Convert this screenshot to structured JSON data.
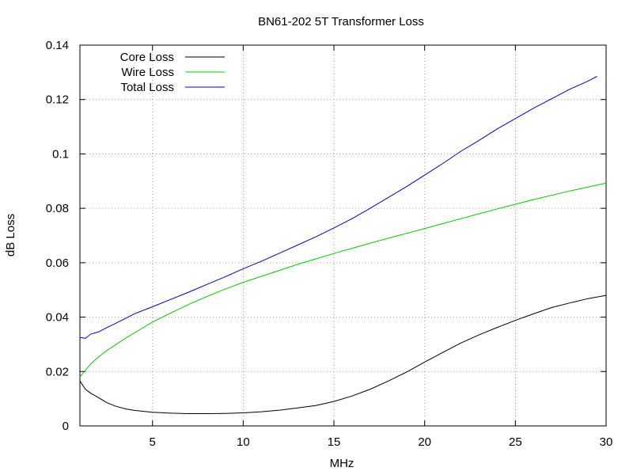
{
  "chart_data": {
    "type": "line",
    "title": "BN61-202 5T Transformer Loss",
    "xlabel": "MHz",
    "ylabel": "dB Loss",
    "xlim": [
      1,
      30
    ],
    "ylim": [
      0,
      0.14
    ],
    "xticks": [
      5,
      10,
      15,
      20,
      25,
      30
    ],
    "xtick_labels": [
      "5",
      "10",
      "15",
      "20",
      "25",
      "30"
    ],
    "yticks": [
      0,
      0.02,
      0.04,
      0.06,
      0.08,
      0.1,
      0.12,
      0.14
    ],
    "ytick_labels": [
      "0",
      "0.02",
      "0.04",
      "0.06",
      "0.08",
      "0.1",
      "0.12",
      "0.14"
    ],
    "grid": true,
    "legend_position": "top-left",
    "series": [
      {
        "name": "Core Loss",
        "color": "#000000",
        "x": [
          1,
          1.3,
          1.6,
          2,
          2.5,
          3,
          3.5,
          4,
          5,
          6,
          7,
          8,
          9,
          10,
          11,
          12,
          13,
          14,
          15,
          16,
          17,
          18,
          19,
          20,
          21,
          22,
          23,
          24,
          25,
          26,
          27,
          28,
          29,
          30
        ],
        "y": [
          0.0165,
          0.0135,
          0.012,
          0.0105,
          0.0085,
          0.0072,
          0.0063,
          0.0057,
          0.005,
          0.0047,
          0.0045,
          0.0045,
          0.0046,
          0.0048,
          0.0052,
          0.0058,
          0.0066,
          0.0075,
          0.009,
          0.011,
          0.0135,
          0.0165,
          0.0198,
          0.0235,
          0.027,
          0.0305,
          0.0335,
          0.0362,
          0.0388,
          0.0412,
          0.0435,
          0.0452,
          0.0468,
          0.048
        ]
      },
      {
        "name": "Wire Loss",
        "color": "#00cc00",
        "x": [
          1,
          1.3,
          1.6,
          2,
          2.5,
          3,
          3.5,
          4,
          5,
          6,
          7,
          8,
          9,
          10,
          11,
          12,
          13,
          14,
          15,
          16,
          17,
          18,
          19,
          20,
          21,
          22,
          23,
          24,
          25,
          26,
          27,
          28,
          29,
          30
        ],
        "y": [
          0.018,
          0.0205,
          0.0228,
          0.0252,
          0.0278,
          0.03,
          0.0322,
          0.0342,
          0.0382,
          0.0415,
          0.0447,
          0.0476,
          0.0503,
          0.0528,
          0.055,
          0.0572,
          0.0594,
          0.0614,
          0.0634,
          0.0653,
          0.0672,
          0.069,
          0.0708,
          0.0726,
          0.0744,
          0.0762,
          0.078,
          0.0798,
          0.0815,
          0.0832,
          0.0848,
          0.0864,
          0.0878,
          0.0893
        ]
      },
      {
        "name": "Total Loss",
        "color": "#0000cc",
        "x": [
          1,
          1.3,
          1.6,
          2,
          2.5,
          3,
          3.5,
          4,
          5,
          6,
          7,
          8,
          9,
          10,
          11,
          12,
          13,
          14,
          15,
          16,
          17,
          18,
          19,
          20,
          21,
          22,
          23,
          24,
          25,
          26,
          27,
          28,
          29,
          29.5
        ],
        "y": [
          0.0325,
          0.0322,
          0.0338,
          0.0345,
          0.0362,
          0.0378,
          0.0395,
          0.0412,
          0.0438,
          0.0465,
          0.0492,
          0.052,
          0.0548,
          0.0578,
          0.0605,
          0.0635,
          0.0665,
          0.0695,
          0.0728,
          0.0762,
          0.08,
          0.084,
          0.088,
          0.0922,
          0.0965,
          0.101,
          0.105,
          0.1092,
          0.113,
          0.1168,
          0.1203,
          0.1238,
          0.1268,
          0.1285
        ]
      }
    ]
  }
}
